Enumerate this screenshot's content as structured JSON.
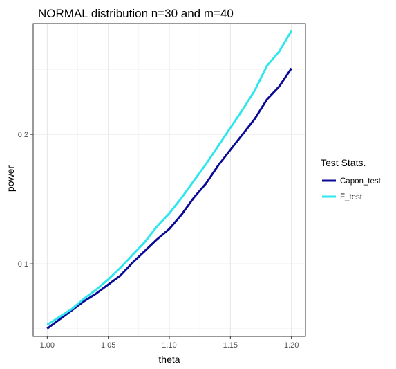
{
  "chart_data": {
    "type": "line",
    "title": "NORMAL distribution     n=30 and m=40",
    "xlabel": "theta",
    "ylabel": "power",
    "xlim": [
      0.9885,
      1.2115
    ],
    "ylim": [
      0.0439,
      0.2856
    ],
    "x_ticks": [
      1.0,
      1.05,
      1.1,
      1.15,
      1.2
    ],
    "x_tick_labels": [
      "1.00",
      "1.05",
      "1.10",
      "1.15",
      "1.20"
    ],
    "y_ticks": [
      0.1,
      0.2
    ],
    "y_tick_labels": [
      "0.1",
      "0.2"
    ],
    "grid": true,
    "legend": {
      "title": "Test Stats.",
      "position": "right"
    },
    "x": [
      1.0,
      1.01,
      1.02,
      1.03,
      1.04,
      1.05,
      1.06,
      1.07,
      1.08,
      1.09,
      1.1,
      1.11,
      1.12,
      1.13,
      1.14,
      1.15,
      1.16,
      1.17,
      1.18,
      1.19,
      1.2
    ],
    "series": [
      {
        "name": "Capon_test",
        "color": "#0a0a96",
        "values": [
          0.05,
          0.057,
          0.064,
          0.071,
          0.077,
          0.084,
          0.091,
          0.101,
          0.11,
          0.119,
          0.127,
          0.138,
          0.151,
          0.162,
          0.176,
          0.188,
          0.2,
          0.212,
          0.227,
          0.237,
          0.251
        ]
      },
      {
        "name": "F_test",
        "color": "#2ee6ee",
        "values": [
          0.053,
          0.059,
          0.065,
          0.073,
          0.08,
          0.088,
          0.097,
          0.107,
          0.117,
          0.129,
          0.139,
          0.151,
          0.164,
          0.177,
          0.191,
          0.205,
          0.219,
          0.234,
          0.253,
          0.264,
          0.28
        ]
      }
    ]
  }
}
